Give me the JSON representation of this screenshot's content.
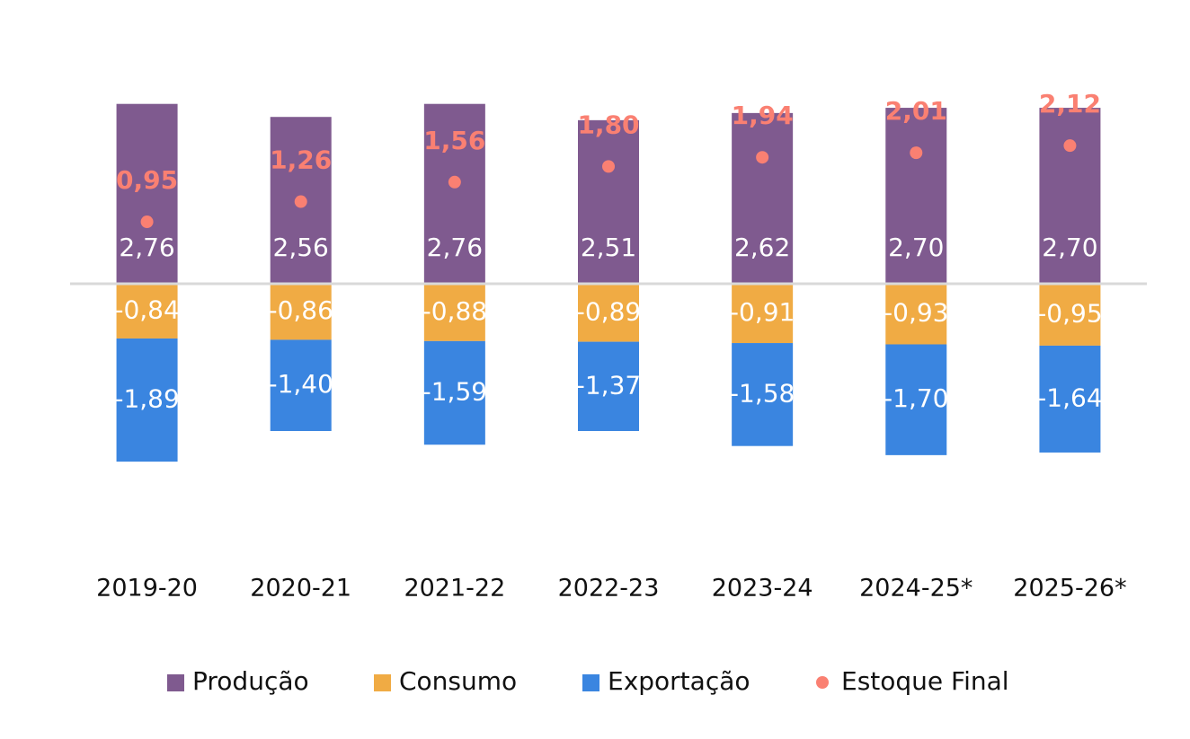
{
  "chart_data": {
    "type": "bar",
    "stacked": true,
    "categories": [
      "2019-20",
      "2020-21",
      "2021-22",
      "2022-23",
      "2023-24",
      "2024-25*",
      "2025-26*"
    ],
    "ylim": [
      -3.5,
      3.5
    ],
    "legend": "bottom",
    "series": [
      {
        "name": "Produção",
        "color": "#7f5a8f",
        "values": [
          2.76,
          2.56,
          2.76,
          2.51,
          2.62,
          2.7,
          2.7
        ],
        "value_labels": [
          "2,76",
          "2,56",
          "2,76",
          "2,51",
          "2,62",
          "2,70",
          "2,70"
        ]
      },
      {
        "name": "Consumo",
        "color": "#f0ab44",
        "values": [
          -0.84,
          -0.86,
          -0.88,
          -0.89,
          -0.91,
          -0.93,
          -0.95
        ],
        "value_labels": [
          "-0,84",
          "-0,86",
          "-0,88",
          "-0,89",
          "-0,91",
          "-0,93",
          "-0,95"
        ]
      },
      {
        "name": "Exportação",
        "color": "#3a85e0",
        "values": [
          -1.89,
          -1.4,
          -1.59,
          -1.37,
          -1.58,
          -1.7,
          -1.64
        ],
        "value_labels": [
          "-1,89",
          "-1,40",
          "-1,59",
          "-1,37",
          "-1,58",
          "-1,70",
          "-1,64"
        ]
      },
      {
        "name": "Estoque Final",
        "type": "scatter",
        "color": "#fa8072",
        "values": [
          0.95,
          1.26,
          1.56,
          1.8,
          1.94,
          2.01,
          2.12
        ],
        "value_labels": [
          "0,95",
          "1,26",
          "1,56",
          "1,80",
          "1,94",
          "2,01",
          "2,12"
        ]
      }
    ]
  }
}
